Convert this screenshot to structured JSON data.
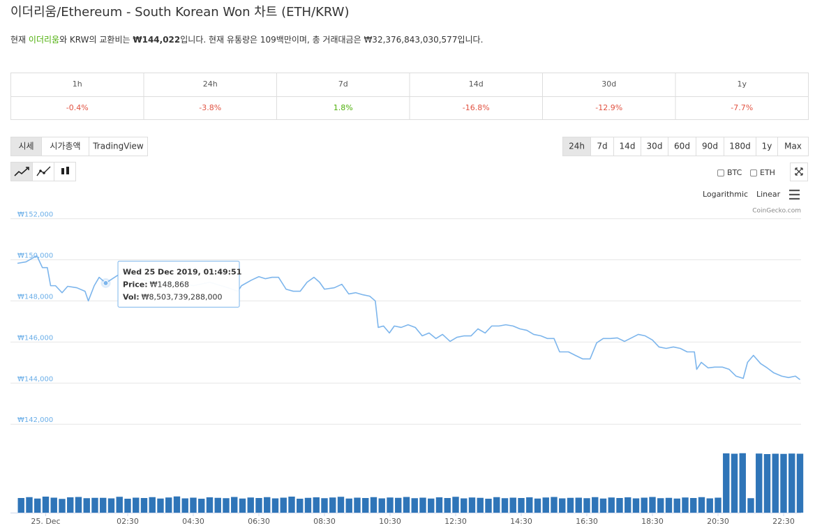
{
  "title": "이더리움/Ethereum - South Korean Won 차트 (ETH/KRW)",
  "description": [
    "현재 ",
    "이더리움",
    "와 KRW의 교환비는 ",
    "₩144,022",
    "입니다. 현재 유통량은 109백만이며, 총 거래대금은 ₩32,376,843,030,577입니다."
  ],
  "stats": {
    "headers": [
      "1h",
      "24h",
      "7d",
      "14d",
      "30d",
      "1y"
    ],
    "values": [
      "-0.4%",
      "-3.8%",
      "1.8%",
      "-16.8%",
      "-12.9%",
      "-7.7%"
    ]
  },
  "tabs": [
    "시세",
    "시가총액",
    "TradingView"
  ],
  "ranges": [
    "24h",
    "7d",
    "14d",
    "30d",
    "60d",
    "90d",
    "180d",
    "1y",
    "Max"
  ],
  "toggles": [
    "BTC",
    "ETH"
  ],
  "scales": [
    "Logarithmic",
    "Linear"
  ],
  "credit": "CoinGecko.com",
  "chart_data": [
    {
      "type": "line",
      "x": [
        -0.86,
        -0.6,
        -0.27,
        -0.1,
        0.05,
        0.15,
        0.3,
        0.5,
        0.67,
        0.95,
        1.2,
        1.3,
        1.48,
        1.63,
        1.8308,
        2.2,
        2.43,
        2.65,
        3.0,
        3.5,
        4.0,
        4.5,
        5.0,
        5.5,
        5.86,
        5.97,
        6.27,
        6.5,
        6.7,
        6.9,
        7.1,
        7.33,
        7.55,
        7.76,
        7.97,
        8.18,
        8.35,
        8.5,
        8.8,
        9.03,
        9.24,
        9.45,
        9.67,
        9.88,
        10.05,
        10.14,
        10.3,
        10.48,
        10.63,
        10.84,
        11.05,
        11.27,
        11.48,
        11.69,
        11.9,
        12.1,
        12.33,
        12.54,
        12.76,
        12.97,
        13.18,
        13.4,
        13.6,
        13.82,
        14.03,
        14.25,
        14.46,
        14.67,
        14.88,
        15.1,
        15.3,
        15.5,
        15.67,
        15.94,
        16.15,
        16.37,
        16.6,
        16.8,
        17.0,
        17.22,
        17.43,
        17.65,
        17.86,
        18.07,
        18.28,
        18.5,
        18.7,
        18.92,
        19.14,
        19.35,
        19.56,
        19.78,
        19.85,
        19.99,
        20.2,
        20.4,
        20.63,
        20.84,
        21.05,
        21.27,
        21.4,
        21.58,
        21.8,
        22.0,
        22.2,
        22.44,
        22.65,
        22.86,
        23.0
      ],
      "series": [
        {
          "name": "Price",
          "color": "#7cb5ec",
          "values": [
            149830,
            149900,
            150200,
            149620,
            149620,
            148740,
            148740,
            148400,
            148710,
            148640,
            148470,
            148000,
            148740,
            149150,
            148868,
            149250,
            149420,
            149250,
            149010,
            148810,
            148910,
            148740,
            148910,
            148670,
            148470,
            148740,
            149010,
            149180,
            149080,
            149150,
            149150,
            148570,
            148470,
            148470,
            148910,
            149150,
            148910,
            148570,
            148640,
            148810,
            148340,
            148400,
            148300,
            148230,
            148000,
            146710,
            146780,
            146440,
            146780,
            146710,
            146840,
            146710,
            146300,
            146440,
            146170,
            146370,
            146030,
            146230,
            146300,
            146300,
            146640,
            146440,
            146780,
            146780,
            146840,
            146780,
            146640,
            146570,
            146370,
            146300,
            146170,
            146170,
            145520,
            145520,
            145350,
            145180,
            145180,
            145960,
            146170,
            146170,
            146200,
            146030,
            146200,
            146370,
            146300,
            146100,
            145760,
            145690,
            145760,
            145690,
            145520,
            145520,
            144670,
            145010,
            144740,
            144780,
            144780,
            144670,
            144340,
            144230,
            145010,
            145350,
            144950,
            144740,
            144500,
            144340,
            144270,
            144340,
            144170
          ]
        }
      ],
      "xlim": [
        -1.074,
        23.032
      ],
      "ylim": [
        141600,
        152800
      ],
      "yticks": [
        {
          "value": 142000,
          "label": "₩142,000"
        },
        {
          "value": 144000,
          "label": "₩144,000"
        },
        {
          "value": 146000,
          "label": "₩146,000"
        },
        {
          "value": 148000,
          "label": "₩148,000"
        },
        {
          "value": 150000,
          "label": "₩150,000"
        },
        {
          "value": 152000,
          "label": "₩152,000"
        }
      ],
      "xticks": [
        {
          "value": 0,
          "label": "25. Dec"
        },
        {
          "value": 2.5,
          "label": "02:30"
        },
        {
          "value": 4.5,
          "label": "04:30"
        },
        {
          "value": 6.5,
          "label": "06:30"
        },
        {
          "value": 8.5,
          "label": "08:30"
        },
        {
          "value": 10.5,
          "label": "10:30"
        },
        {
          "value": 12.5,
          "label": "12:30"
        },
        {
          "value": 14.5,
          "label": "14:30"
        },
        {
          "value": 16.5,
          "label": "16:30"
        },
        {
          "value": 18.5,
          "label": "18:30"
        },
        {
          "value": 20.5,
          "label": "20:30"
        },
        {
          "value": 22.5,
          "label": "22:30"
        }
      ],
      "grid": true,
      "tooltip": {
        "x": 1.8308,
        "date": "Wed 25 Dec 2019, 01:49:51",
        "price_label": "Price:",
        "price": "₩148,868",
        "vol_label": "Vol:",
        "vol": "₩8,503,739,288,000"
      }
    },
    {
      "type": "bar",
      "x": [
        -0.75,
        -0.5,
        -0.25,
        0,
        0.25,
        0.5,
        0.75,
        1,
        1.25,
        1.5,
        1.75,
        2,
        2.25,
        2.5,
        2.75,
        3,
        3.25,
        3.5,
        3.75,
        4,
        4.25,
        4.5,
        4.75,
        5,
        5.25,
        5.5,
        5.75,
        6,
        6.25,
        6.5,
        6.75,
        7,
        7.25,
        7.5,
        7.75,
        8,
        8.25,
        8.5,
        8.75,
        9,
        9.25,
        9.5,
        9.75,
        10,
        10.25,
        10.5,
        10.75,
        11,
        11.25,
        11.5,
        11.75,
        12,
        12.25,
        12.5,
        12.75,
        13,
        13.25,
        13.5,
        13.75,
        14,
        14.25,
        14.5,
        14.75,
        15,
        15.25,
        15.5,
        15.75,
        16,
        16.25,
        16.5,
        16.75,
        17,
        17.25,
        17.5,
        17.75,
        18,
        18.25,
        18.5,
        18.75,
        19,
        19.25,
        19.5,
        19.75,
        20,
        20.25,
        20.5,
        20.75,
        21,
        21.25,
        21.5,
        21.75,
        22,
        22.25,
        22.5,
        22.75,
        23
      ],
      "values": [
        8400000000000.0,
        8900000000000.0,
        8100000000000.0,
        9200000000000.0,
        8600000000000.0,
        7900000000000.0,
        8800000000000.0,
        9000000000000.0,
        8300000000000.0,
        8500000000000.0,
        8503739288000.0,
        8200000000000.0,
        9100000000000.0,
        8000000000000.0,
        8600000000000.0,
        8400000000000.0,
        8900000000000.0,
        8100000000000.0,
        8700000000000.0,
        9300000000000.0,
        8200000000000.0,
        8600000000000.0,
        8000000000000.0,
        8800000000000.0,
        8500000000000.0,
        8300000000000.0,
        9000000000000.0,
        8100000000000.0,
        8700000000000.0,
        8400000000000.0,
        8900000000000.0,
        8200000000000.0,
        8600000000000.0,
        9200000000000.0,
        8000000000000.0,
        8500000000000.0,
        8800000000000.0,
        8300000000000.0,
        8700000000000.0,
        9100000000000.0,
        8100000000000.0,
        8600000000000.0,
        8400000000000.0,
        8900000000000.0,
        8200000000000.0,
        8700000000000.0,
        8500000000000.0,
        9000000000000.0,
        8300000000000.0,
        8600000000000.0,
        8100000000000.0,
        8800000000000.0,
        8400000000000.0,
        9100000000000.0,
        8200000000000.0,
        8700000000000.0,
        8500000000000.0,
        8000000000000.0,
        8900000000000.0,
        8300000000000.0,
        8600000000000.0,
        8400000000000.0,
        8800000000000.0,
        8100000000000.0,
        8700000000000.0,
        9000000000000.0,
        8200000000000.0,
        8500000000000.0,
        8600000000000.0,
        8300000000000.0,
        8900000000000.0,
        8100000000000.0,
        8700000000000.0,
        8400000000000.0,
        8800000000000.0,
        8200000000000.0,
        8600000000000.0,
        9000000000000.0,
        8300000000000.0,
        8500000000000.0,
        8100000000000.0,
        8700000000000.0,
        8400000000000.0,
        8900000000000.0,
        8200000000000.0,
        8600000000000.0,
        34000000000000.0,
        33800000000000.0,
        34100000000000.0,
        8300000000000.0,
        33900000000000.0,
        33600000000000.0,
        33800000000000.0,
        33700000000000.0,
        33900000000000.0,
        33800000000000.0
      ],
      "color": "#2f75b8",
      "xlim": [
        -1.074,
        23.032
      ],
      "ylim": [
        0,
        40000000000000.0
      ]
    }
  ]
}
